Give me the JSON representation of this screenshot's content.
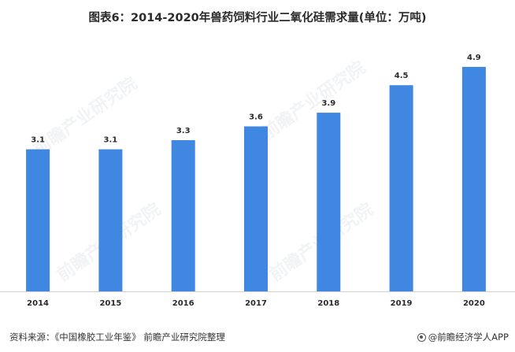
{
  "title": "图表6：2014-2020年兽药饲料行业二氧化硅需求量(单位：万吨)",
  "source": "资料来源：《中国橡胶工业年鉴》 前瞻产业研究院整理",
  "brand": "@前瞻经济学人APP",
  "watermark": "前瞻产业研究院",
  "colors": {
    "bar": "#3f87e0",
    "axis": "#d0d0d0",
    "text": "#2b2b2b"
  },
  "chart_data": {
    "type": "bar",
    "categories": [
      "2014",
      "2015",
      "2016",
      "2017",
      "2018",
      "2019",
      "2020"
    ],
    "values": [
      3.1,
      3.1,
      3.3,
      3.6,
      3.9,
      4.5,
      4.9
    ],
    "title": "图表6：2014-2020年兽药饲料行业二氧化硅需求量(单位：万吨)",
    "xlabel": "",
    "ylabel": "",
    "ylim": [
      0,
      5.5
    ],
    "grid": false,
    "legend": "none",
    "data_labels": true
  }
}
